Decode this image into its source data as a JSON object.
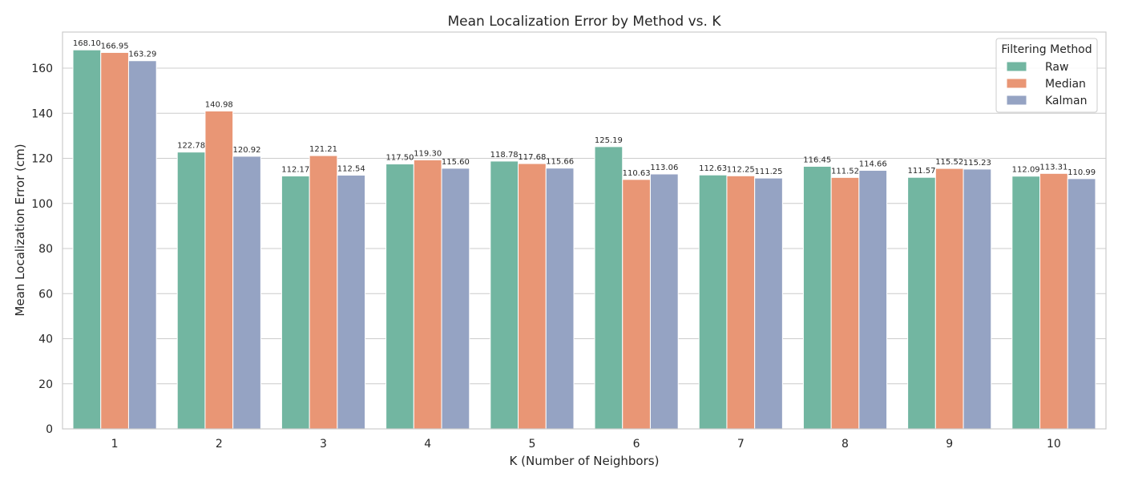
{
  "chart_data": {
    "type": "bar",
    "title": "Mean Localization Error by Method vs. K",
    "xlabel": "K (Number of Neighbors)",
    "ylabel": "Mean Localization Error (cm)",
    "categories": [
      "1",
      "2",
      "3",
      "4",
      "5",
      "6",
      "7",
      "8",
      "9",
      "10"
    ],
    "ylim": [
      0,
      176
    ],
    "yticks": [
      0,
      20,
      40,
      60,
      80,
      100,
      120,
      140,
      160
    ],
    "grid": true,
    "legend": {
      "title": "Filtering Method",
      "placement": "top-right"
    },
    "series": [
      {
        "name": "Raw",
        "color": "#72b6a1",
        "values": [
          168.1,
          122.78,
          112.17,
          117.5,
          118.78,
          125.19,
          112.63,
          116.45,
          111.57,
          112.09
        ],
        "labels": [
          "168.10",
          "122.78",
          "112.17",
          "117.50",
          "118.78",
          "125.19",
          "112.63",
          "116.45",
          "111.57",
          "112.09"
        ]
      },
      {
        "name": "Median",
        "color": "#e99675",
        "values": [
          166.95,
          140.98,
          121.21,
          119.3,
          117.68,
          110.63,
          112.25,
          111.52,
          115.52,
          113.31
        ],
        "labels": [
          "166.95",
          "140.98",
          "121.21",
          "119.30",
          "117.68",
          "110.63",
          "112.25",
          "111.52",
          "115.52",
          "113.31"
        ]
      },
      {
        "name": "Kalman",
        "color": "#95a3c3",
        "values": [
          163.29,
          120.92,
          112.54,
          115.6,
          115.66,
          113.06,
          111.25,
          114.66,
          115.23,
          110.99
        ],
        "labels": [
          "163.29",
          "120.92",
          "112.54",
          "115.60",
          "115.66",
          "113.06",
          "111.25",
          "114.66",
          "115.23",
          "110.99"
        ]
      }
    ]
  }
}
